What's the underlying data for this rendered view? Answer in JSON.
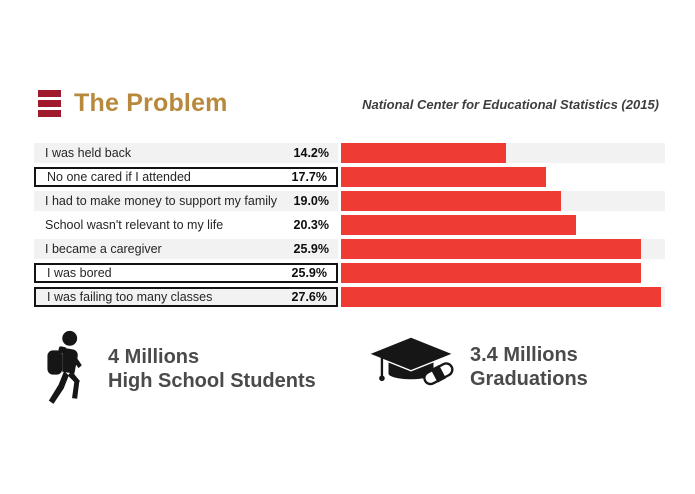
{
  "header": {
    "title": "The Problem",
    "source": "National Center for Educational Statistics (2015)"
  },
  "chart_data": {
    "type": "bar",
    "orientation": "horizontal",
    "title": "The Problem",
    "subtitle": "National Center for Educational Statistics (2015)",
    "categories": [
      "I was held back",
      "No one cared if I attended",
      "I had to make money to support my family",
      "School wasn't relevant to my life",
      "I became a caregiver",
      "I was bored",
      "I was failing too many classes"
    ],
    "values": [
      14.2,
      17.7,
      19.0,
      20.3,
      25.9,
      25.9,
      27.6
    ],
    "value_labels": [
      "14.2%",
      "17.7%",
      "19.0%",
      "20.3%",
      "25.9%",
      "25.9%",
      "27.6%"
    ],
    "highlighted": [
      false,
      true,
      false,
      false,
      false,
      true,
      true
    ],
    "xlim": [
      0,
      27.6
    ],
    "grid": false,
    "legend": false,
    "bar_color": "#EE3B33",
    "stripe_color": "#F2F2F2"
  },
  "stats": [
    {
      "icon": "student-backpack-icon",
      "value": "4 Millions",
      "label": "High School Students"
    },
    {
      "icon": "graduation-cap-icon",
      "value": "3.4 Millions",
      "label": "Graduations"
    }
  ],
  "colors": {
    "bar_red": "#EE3B33",
    "accent_dark_red": "#A01A2E",
    "title_gold": "#B8893C",
    "row_stripe": "#F2F2F2",
    "text_dark": "#3E3E3E",
    "stat_text": "#4A4A4A"
  }
}
